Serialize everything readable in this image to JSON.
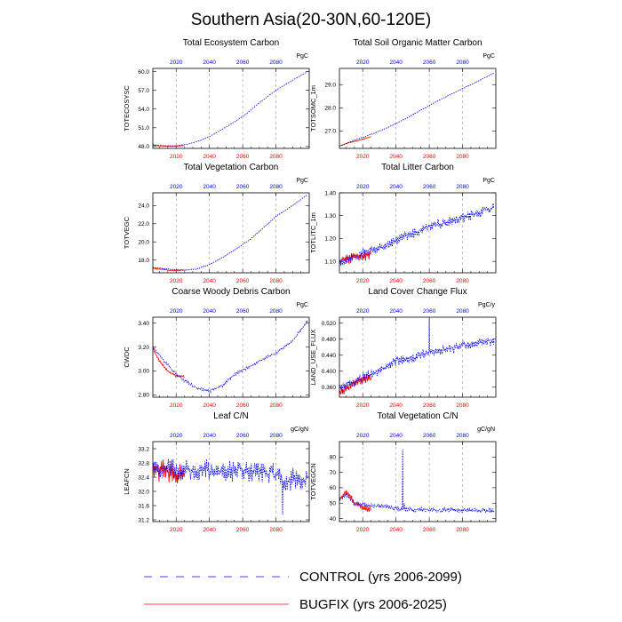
{
  "title": "Southern Asia(20-30N,60-120E)",
  "legend": {
    "control_label": "CONTROL (yrs 2006-2099)",
    "bugfix_label": "BUGFIX (yrs 2006-2025)"
  },
  "colors": {
    "control": "#0000ff",
    "bugfix": "#ff0000",
    "top_ticks": "#0000ff",
    "bottom_ticks": "#ff0000",
    "grid": "#999999"
  },
  "chart_data": [
    {
      "type": "line",
      "title": "Total Ecosystem Carbon",
      "ylabel": "TOTECOSYSC",
      "unit": "PgC",
      "xlim": [
        2006,
        2100
      ],
      "ylim": [
        47.7,
        60.5
      ],
      "xticks": [
        "2020",
        "2040",
        "2060",
        "2080"
      ],
      "yticks": [
        "48.0",
        "51.0",
        "54.0",
        "57.0",
        "60.0"
      ],
      "control_anchors": [
        [
          2006,
          48.3
        ],
        [
          2012,
          48.15
        ],
        [
          2020,
          48.1
        ],
        [
          2028,
          48.45
        ],
        [
          2035,
          49.0
        ],
        [
          2040,
          49.6
        ],
        [
          2048,
          50.8
        ],
        [
          2056,
          52.1
        ],
        [
          2062,
          53.2
        ],
        [
          2070,
          55.0
        ],
        [
          2080,
          57.0
        ],
        [
          2090,
          58.6
        ],
        [
          2099,
          60.0
        ]
      ],
      "control_noise": 0.03,
      "bugfix_anchors": [
        [
          2006,
          48.2
        ],
        [
          2010,
          48.1
        ],
        [
          2015,
          48.05
        ],
        [
          2020,
          48.05
        ],
        [
          2025,
          48.15
        ]
      ],
      "bugfix_noise": 0.03
    },
    {
      "type": "line",
      "title": "Total Soil Organic Matter Carbon",
      "ylabel": "TOTSOMC_1m",
      "unit": "PgC",
      "xlim": [
        2006,
        2100
      ],
      "ylim": [
        26.25,
        29.7
      ],
      "xticks": [
        "2020",
        "2040",
        "2060",
        "2080"
      ],
      "yticks": [
        "27.0",
        "28.0",
        "29.0"
      ],
      "control_anchors": [
        [
          2006,
          26.35
        ],
        [
          2015,
          26.6
        ],
        [
          2025,
          26.85
        ],
        [
          2035,
          27.15
        ],
        [
          2045,
          27.5
        ],
        [
          2055,
          27.9
        ],
        [
          2065,
          28.3
        ],
        [
          2075,
          28.65
        ],
        [
          2085,
          29.0
        ],
        [
          2099,
          29.5
        ]
      ],
      "control_noise": 0.015,
      "bugfix_anchors": [
        [
          2006,
          26.35
        ],
        [
          2012,
          26.5
        ],
        [
          2018,
          26.6
        ],
        [
          2025,
          26.75
        ]
      ],
      "bugfix_noise": 0.015
    },
    {
      "type": "line",
      "title": "Total Vegetation Carbon",
      "ylabel": "TOTVEGC",
      "unit": "PgC",
      "xlim": [
        2006,
        2100
      ],
      "ylim": [
        16.6,
        25.4
      ],
      "xticks": [
        "2020",
        "2040",
        "2060",
        "2080"
      ],
      "yticks": [
        "18.0",
        "20.0",
        "22.0",
        "24.0"
      ],
      "control_anchors": [
        [
          2006,
          17.2
        ],
        [
          2015,
          17.0
        ],
        [
          2025,
          16.9
        ],
        [
          2032,
          17.0
        ],
        [
          2040,
          17.5
        ],
        [
          2048,
          18.3
        ],
        [
          2056,
          19.2
        ],
        [
          2064,
          20.2
        ],
        [
          2072,
          21.5
        ],
        [
          2080,
          22.8
        ],
        [
          2090,
          24.0
        ],
        [
          2099,
          25.2
        ]
      ],
      "control_noise": 0.05,
      "bugfix_anchors": [
        [
          2006,
          17.1
        ],
        [
          2012,
          16.95
        ],
        [
          2018,
          16.85
        ],
        [
          2025,
          16.9
        ]
      ],
      "bugfix_noise": 0.05
    },
    {
      "type": "line",
      "title": "Total Litter Carbon",
      "ylabel": "TOTLITC_1m",
      "unit": "PgC",
      "xlim": [
        2006,
        2100
      ],
      "ylim": [
        1.05,
        1.4
      ],
      "xticks": [
        "2020",
        "2040",
        "2060",
        "2080"
      ],
      "yticks": [
        "1.10",
        "1.20",
        "1.30",
        "1.40"
      ],
      "control_anchors": [
        [
          2006,
          1.1
        ],
        [
          2020,
          1.13
        ],
        [
          2040,
          1.19
        ],
        [
          2060,
          1.25
        ],
        [
          2080,
          1.29
        ],
        [
          2099,
          1.34
        ]
      ],
      "control_noise": 0.022,
      "bugfix_anchors": [
        [
          2006,
          1.1
        ],
        [
          2015,
          1.12
        ],
        [
          2025,
          1.13
        ]
      ],
      "bugfix_noise": 0.022
    },
    {
      "type": "line",
      "title": "Coarse Woody Debris Carbon",
      "ylabel": "CWDC",
      "unit": "PgC",
      "xlim": [
        2006,
        2100
      ],
      "ylim": [
        2.78,
        3.45
      ],
      "xticks": [
        "2020",
        "2040",
        "2060",
        "2080"
      ],
      "yticks": [
        "2.80",
        "3.00",
        "3.20",
        "3.40"
      ],
      "control_anchors": [
        [
          2006,
          3.2
        ],
        [
          2012,
          3.1
        ],
        [
          2018,
          3.0
        ],
        [
          2025,
          2.92
        ],
        [
          2032,
          2.86
        ],
        [
          2040,
          2.83
        ],
        [
          2048,
          2.88
        ],
        [
          2055,
          2.97
        ],
        [
          2062,
          3.02
        ],
        [
          2070,
          3.08
        ],
        [
          2080,
          3.15
        ],
        [
          2090,
          3.25
        ],
        [
          2099,
          3.42
        ]
      ],
      "control_noise": 0.012,
      "bugfix_anchors": [
        [
          2006,
          3.19
        ],
        [
          2010,
          3.08
        ],
        [
          2015,
          3.0
        ],
        [
          2020,
          2.96
        ],
        [
          2025,
          2.95
        ]
      ],
      "bugfix_noise": 0.01
    },
    {
      "type": "line",
      "title": "Land Cover Change Flux",
      "ylabel": "LAND_USE_FLUX",
      "unit": "PgC/y",
      "xlim": [
        2006,
        2100
      ],
      "ylim": [
        0.335,
        0.535
      ],
      "xticks": [
        "2020",
        "2040",
        "2060",
        "2080"
      ],
      "yticks": [
        "0.360",
        "0.400",
        "0.440",
        "0.480",
        "0.520"
      ],
      "control_anchors": [
        [
          2006,
          0.355
        ],
        [
          2020,
          0.385
        ],
        [
          2040,
          0.425
        ],
        [
          2060,
          0.445
        ],
        [
          2080,
          0.465
        ],
        [
          2099,
          0.475
        ]
      ],
      "control_noise": 0.012,
      "control_spikes": [
        [
          2060,
          0.53
        ],
        [
          2061,
          0.455
        ]
      ],
      "bugfix_anchors": [
        [
          2006,
          0.35
        ],
        [
          2015,
          0.37
        ],
        [
          2025,
          0.385
        ]
      ],
      "bugfix_noise": 0.012
    },
    {
      "type": "line",
      "title": "Leaf C/N",
      "ylabel": "LEAFCN",
      "unit": "gC/gN",
      "xlim": [
        2006,
        2100
      ],
      "ylim": [
        31.15,
        33.4
      ],
      "xticks": [
        "2020",
        "2040",
        "2060",
        "2080"
      ],
      "yticks": [
        "31.2",
        "31.6",
        "32.0",
        "32.4",
        "32.8",
        "33.2"
      ],
      "control_anchors": [
        [
          2006,
          32.6
        ],
        [
          2030,
          32.6
        ],
        [
          2050,
          32.55
        ],
        [
          2070,
          32.55
        ],
        [
          2080,
          32.5
        ],
        [
          2085,
          32.2
        ],
        [
          2090,
          32.4
        ],
        [
          2099,
          32.3
        ]
      ],
      "control_noise": 0.28,
      "control_spikes": [
        [
          2084,
          31.35
        ]
      ],
      "bugfix_anchors": [
        [
          2006,
          32.6
        ],
        [
          2015,
          32.5
        ],
        [
          2025,
          32.5
        ]
      ],
      "bugfix_noise": 0.3
    },
    {
      "type": "line",
      "title": "Total Vegetation C/N",
      "ylabel": "TOTVEGCN",
      "unit": "gC/gN",
      "xlim": [
        2006,
        2100
      ],
      "ylim": [
        38,
        90
      ],
      "xticks": [
        "2020",
        "2040",
        "2060",
        "2080"
      ],
      "yticks": [
        "40",
        "50",
        "60",
        "70",
        "80"
      ],
      "control_anchors": [
        [
          2006,
          52
        ],
        [
          2010,
          56
        ],
        [
          2015,
          50
        ],
        [
          2020,
          49
        ],
        [
          2030,
          48
        ],
        [
          2038,
          47
        ],
        [
          2042,
          46
        ],
        [
          2050,
          46
        ],
        [
          2070,
          45.5
        ],
        [
          2099,
          45
        ]
      ],
      "control_noise": 1.5,
      "control_spikes": [
        [
          2044,
          85
        ],
        [
          2045,
          50
        ]
      ],
      "bugfix_anchors": [
        [
          2006,
          53
        ],
        [
          2010,
          58
        ],
        [
          2015,
          50
        ],
        [
          2020,
          47
        ],
        [
          2025,
          46
        ]
      ],
      "bugfix_noise": 2.0
    }
  ]
}
